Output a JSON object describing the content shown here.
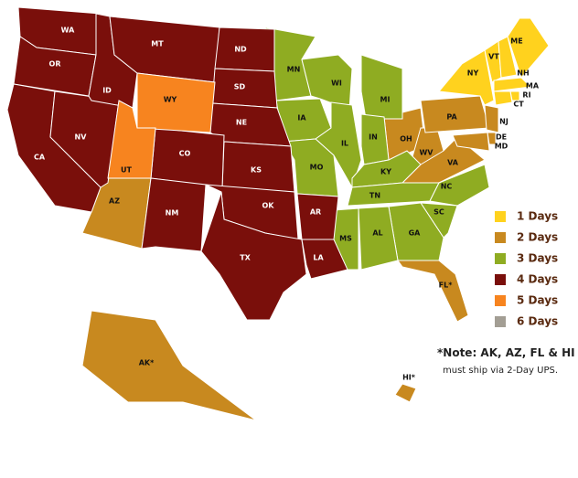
{
  "zones": [
    {
      "label": "1 Days",
      "color": "#ffd21e",
      "states": [
        "VT",
        "NH",
        "ME",
        "MA",
        "RI",
        "CT",
        "NY"
      ]
    },
    {
      "label": "2 Days",
      "color": "#c8891f",
      "states": [
        "AZ",
        "OH",
        "WV",
        "PA",
        "VA",
        "NJ",
        "DE",
        "MD",
        "FL*",
        "AK*",
        "HI*"
      ]
    },
    {
      "label": "3 Days",
      "color": "#8fac22",
      "states": [
        "MN",
        "IA",
        "WI",
        "IL",
        "MI",
        "IN",
        "KY",
        "TN",
        "NC",
        "SC",
        "GA",
        "AL",
        "MS",
        "MO"
      ]
    },
    {
      "label": "4 Days",
      "color": "#7a0f0b",
      "states": [
        "WA",
        "OR",
        "CA",
        "NV",
        "ID",
        "MT",
        "ND",
        "SD",
        "NE",
        "KS",
        "CO",
        "NM",
        "OK",
        "TX",
        "AR",
        "LA"
      ]
    },
    {
      "label": "5 Days",
      "color": "#f7841f",
      "states": [
        "WY",
        "UT"
      ]
    },
    {
      "label": "6 Days",
      "color": "#a39e94"
    }
  ],
  "note": {
    "title": "*Note: AK, AZ, FL & HI",
    "text": "must ship via 2-Day UPS."
  }
}
